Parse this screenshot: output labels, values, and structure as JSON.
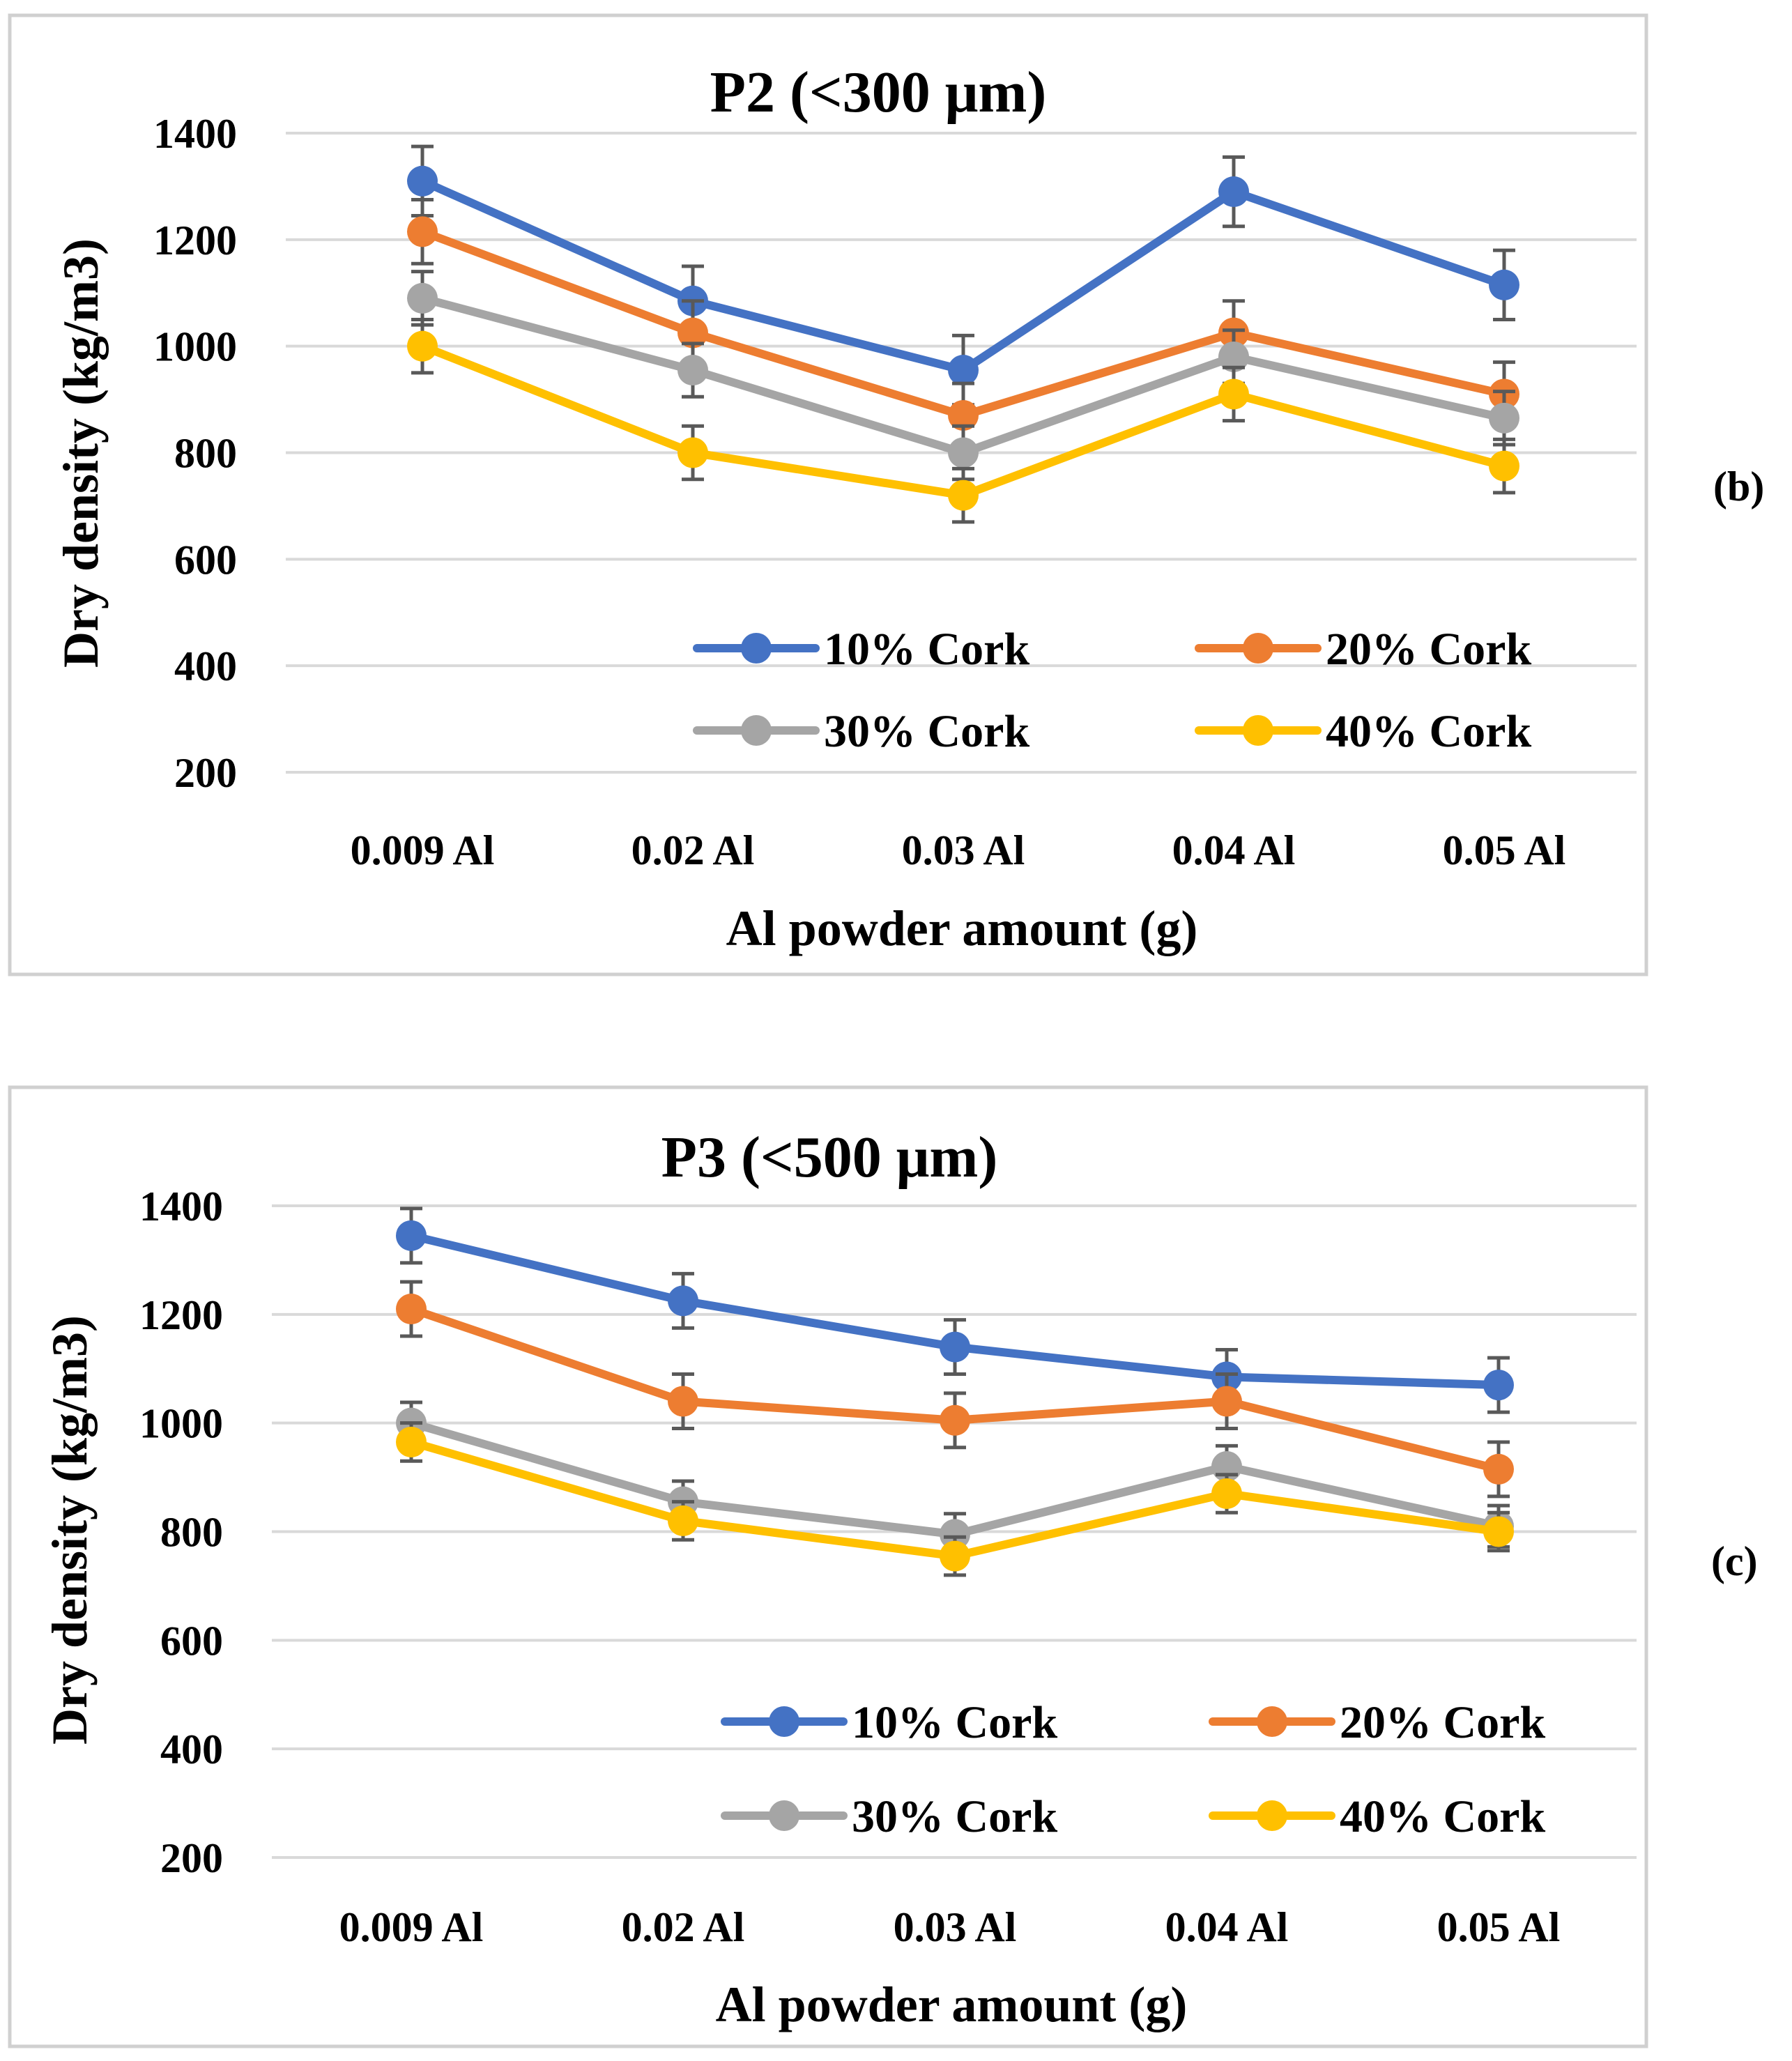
{
  "chart_data": [
    {
      "type": "line",
      "panel_label": "(b)",
      "title": "P2 (<300 μm)",
      "xlabel": "Al powder amount (g)",
      "ylabel": "Dry density (kg/m3)",
      "categories": [
        "0.009 Al",
        "0.02 Al",
        "0.03 Al",
        "0.04 Al",
        "0.05 Al"
      ],
      "ylim": [
        200,
        1400
      ],
      "yticks": [
        "200",
        "400",
        "600",
        "800",
        "1000",
        "1200",
        "1400"
      ],
      "grid": true,
      "legend": "bottom-right, inside plot, 2 columns",
      "series": [
        {
          "name": "10% Cork",
          "color": "#4472c4",
          "values": [
            1310,
            1085,
            955,
            1290,
            1115
          ],
          "errors": [
            65,
            65,
            65,
            65,
            65
          ]
        },
        {
          "name": "20% Cork",
          "color": "#ed7d31",
          "values": [
            1215,
            1025,
            870,
            1025,
            910
          ],
          "errors": [
            60,
            60,
            60,
            60,
            60
          ]
        },
        {
          "name": "30% Cork",
          "color": "#a5a5a5",
          "values": [
            1090,
            955,
            800,
            980,
            865
          ],
          "errors": [
            50,
            50,
            50,
            50,
            50
          ]
        },
        {
          "name": "40% Cork",
          "color": "#ffc000",
          "values": [
            1000,
            800,
            720,
            910,
            775
          ],
          "errors": [
            50,
            50,
            50,
            50,
            50
          ]
        }
      ]
    },
    {
      "type": "line",
      "panel_label": "(c)",
      "title": "P3 (<500 μm)",
      "xlabel": "Al powder amount (g)",
      "ylabel": "Dry density (kg/m3)",
      "categories": [
        "0.009 Al",
        "0.02 Al",
        "0.03 Al",
        "0.04 Al",
        "0.05 Al"
      ],
      "ylim": [
        200,
        1400
      ],
      "yticks": [
        "200",
        "400",
        "600",
        "800",
        "1000",
        "1200",
        "1400"
      ],
      "grid": true,
      "legend": "bottom-right, inside plot, 2 columns",
      "series": [
        {
          "name": "10% Cork",
          "color": "#4472c4",
          "values": [
            1345,
            1225,
            1140,
            1085,
            1070
          ],
          "errors": [
            50,
            50,
            50,
            50,
            50
          ]
        },
        {
          "name": "20% Cork",
          "color": "#ed7d31",
          "values": [
            1210,
            1040,
            1005,
            1040,
            915
          ],
          "errors": [
            50,
            50,
            50,
            50,
            50
          ]
        },
        {
          "name": "30% Cork",
          "color": "#a5a5a5",
          "values": [
            1000,
            855,
            795,
            920,
            810
          ],
          "errors": [
            38,
            38,
            38,
            38,
            38
          ]
        },
        {
          "name": "40% Cork",
          "color": "#ffc000",
          "values": [
            965,
            820,
            755,
            870,
            800
          ],
          "errors": [
            35,
            35,
            35,
            35,
            35
          ]
        }
      ]
    }
  ]
}
